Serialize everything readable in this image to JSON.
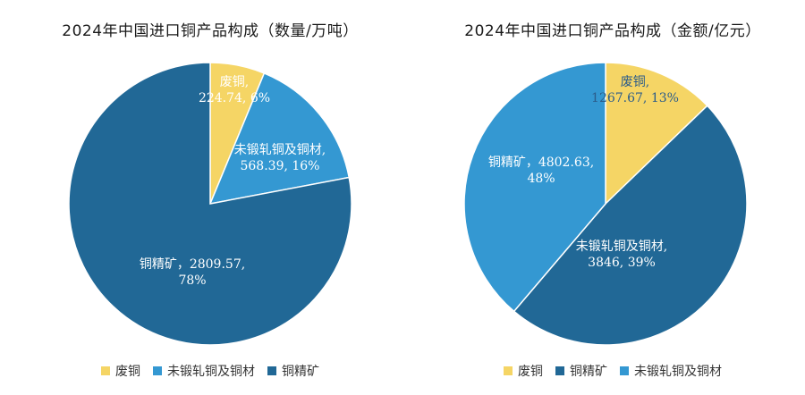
{
  "chart_data": [
    {
      "type": "pie",
      "title": "2024年中国进口铜产品构成（数量/万吨）",
      "slices": [
        {
          "name": "废铜",
          "value": 224.74,
          "percent": "6%",
          "color": "#F5D565",
          "label_lines": [
            "废铜,",
            "224.74, 6%"
          ],
          "label_color": "#ffffff"
        },
        {
          "name": "未锻轧铜及铜材",
          "value": 568.39,
          "percent": "16%",
          "color": "#3498D2",
          "label_lines": [
            "未锻轧铜及铜材,",
            "568.39, 16%"
          ],
          "label_color": "#ffffff"
        },
        {
          "name": "铜精矿",
          "value": 2809.57,
          "percent": "78%",
          "color": "#216896",
          "label_lines": [
            "铜精矿，2809.57,",
            "78%"
          ],
          "label_color": "#ffffff"
        }
      ],
      "legend": [
        "废铜",
        "未锻轧铜及铜材",
        "铜精矿"
      ],
      "legend_position": "bottom"
    },
    {
      "type": "pie",
      "title": "2024年中国进口铜产品构成（金额/亿元）",
      "slices": [
        {
          "name": "废铜",
          "value": 1267.67,
          "percent": "13%",
          "color": "#F5D565",
          "label_lines": [
            "废铜,",
            "1267.67, 13%"
          ],
          "label_color": "#2B5C8A"
        },
        {
          "name": "铜精矿",
          "value": 4802.63,
          "percent": "48%",
          "color": "#216896",
          "label_lines": [
            "铜精矿，4802.63,",
            "48%"
          ],
          "label_color": "#ffffff"
        },
        {
          "name": "未锻轧铜及铜材",
          "value": 3846,
          "percent": "39%",
          "color": "#3498D2",
          "label_lines": [
            "未锻轧铜及铜材,",
            "3846, 39%"
          ],
          "label_color": "#ffffff"
        }
      ],
      "legend": [
        "废铜",
        "铜精矿",
        "未锻轧铜及铜材"
      ],
      "legend_position": "bottom"
    }
  ]
}
